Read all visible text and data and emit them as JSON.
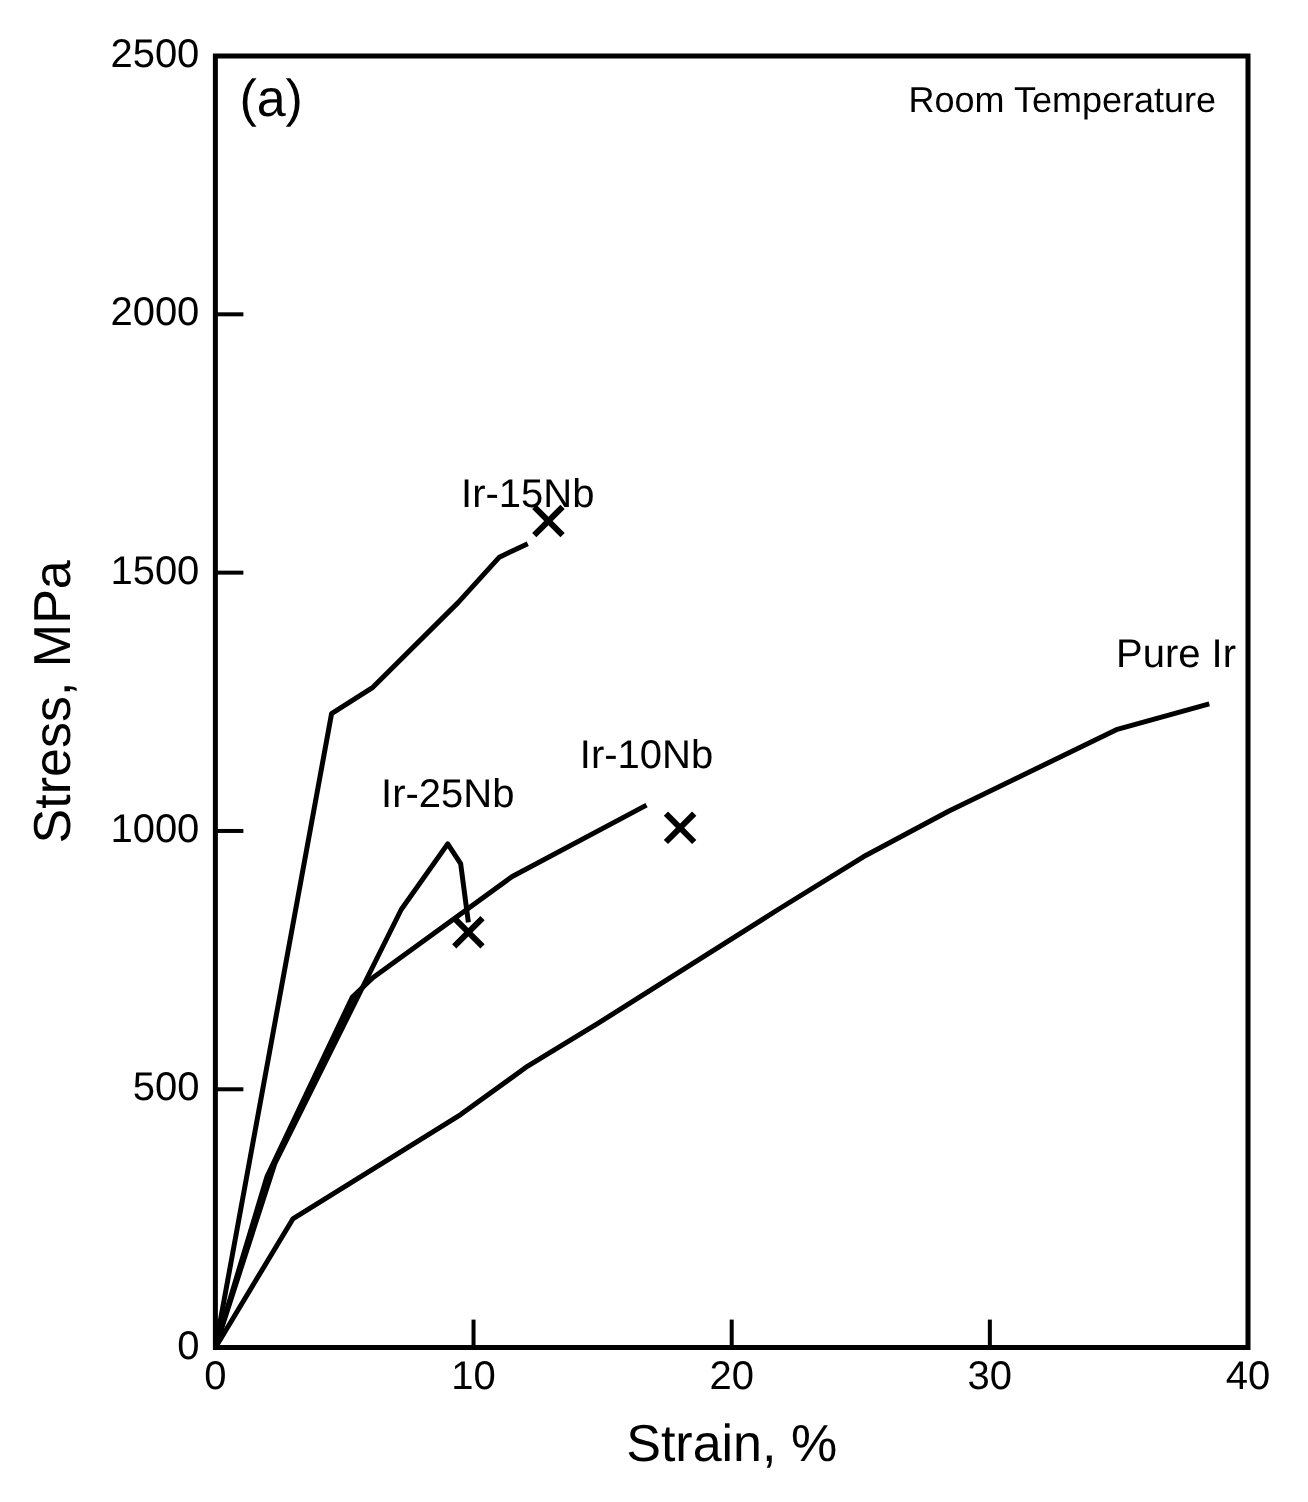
{
  "chart_data": {
    "type": "line",
    "xlabel": "Strain, %",
    "ylabel": "Stress, MPa",
    "xlim": [
      0,
      40
    ],
    "xticks": [
      0,
      10,
      20,
      30,
      40
    ],
    "ylim": [
      0,
      2500
    ],
    "yticks": [
      0,
      500,
      1000,
      1500,
      2000,
      2500
    ],
    "grid": false,
    "legend": false,
    "marker": "none",
    "line_style": "solid",
    "annotations": [
      "(a)",
      "Room Temperature"
    ],
    "series": [
      {
        "name": "Ir-15Nb",
        "color": "#000000",
        "x": [
          0,
          4.5,
          6.1,
          9.4,
          11.0,
          12.1
        ],
        "values": [
          0,
          1227,
          1278,
          1442,
          1530,
          1556
        ]
      },
      {
        "name": "Ir-10Nb",
        "color": "#000000",
        "x": [
          0,
          2.0,
          5.3,
          6.1,
          11.5,
          16.7
        ],
        "values": [
          0,
          331,
          678,
          716,
          912,
          1050
        ]
      },
      {
        "name": "Ir-25Nb",
        "color": "#000000",
        "x": [
          0,
          2.3,
          7.2,
          9.0,
          9.5,
          9.8
        ],
        "values": [
          0,
          356,
          848,
          975,
          937,
          823
        ]
      },
      {
        "name": "Pure Ir",
        "color": "#000000",
        "x": [
          0,
          3.0,
          9.5,
          12.1,
          14.8,
          21.8,
          25.1,
          28.4,
          34.9,
          38.5
        ],
        "values": [
          0,
          249,
          451,
          545,
          627,
          848,
          950,
          1038,
          1196,
          1246
        ]
      },
      {
        "type": "scatter",
        "marker": "cross",
        "color": "#000000",
        "x": [
          12.9,
          18.0,
          9.8
        ],
        "values": [
          1600,
          1006,
          804
        ]
      }
    ]
  }
}
